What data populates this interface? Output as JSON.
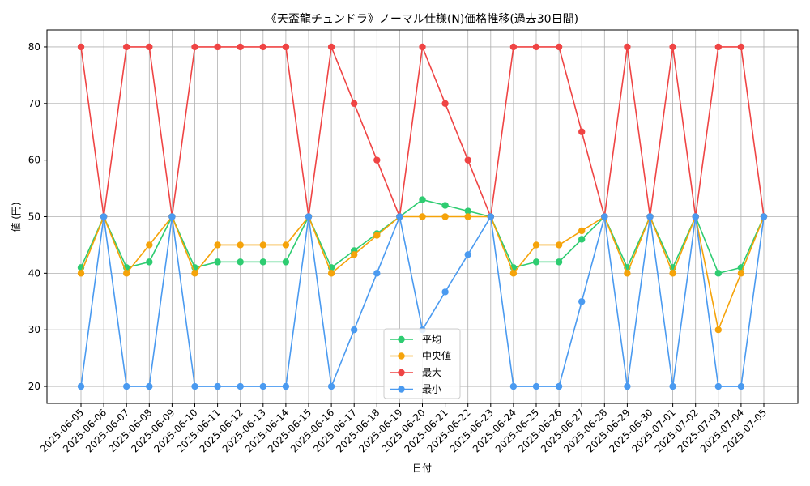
{
  "chart_data": {
    "type": "line",
    "title": "《天盃龍チュンドラ》ノーマル仕様(N)価格推移(過去30日間)",
    "xlabel": "日付",
    "ylabel": "値 (円)",
    "ylim": [
      17,
      83
    ],
    "yticks": [
      20,
      30,
      40,
      50,
      60,
      70,
      80
    ],
    "grid": true,
    "legend_position": "bottom-center",
    "categories": [
      "2025-06-05",
      "2025-06-06",
      "2025-06-07",
      "2025-06-08",
      "2025-06-09",
      "2025-06-10",
      "2025-06-11",
      "2025-06-12",
      "2025-06-13",
      "2025-06-14",
      "2025-06-15",
      "2025-06-16",
      "2025-06-17",
      "2025-06-18",
      "2025-06-19",
      "2025-06-20",
      "2025-06-21",
      "2025-06-22",
      "2025-06-23",
      "2025-06-24",
      "2025-06-25",
      "2025-06-26",
      "2025-06-27",
      "2025-06-28",
      "2025-06-29",
      "2025-06-30",
      "2025-07-01",
      "2025-07-02",
      "2025-07-03",
      "2025-07-04",
      "2025-07-05"
    ],
    "series": [
      {
        "name": "平均",
        "color": "#2ecc71",
        "values": [
          41,
          50,
          41,
          42,
          50,
          41,
          42,
          42,
          42,
          42,
          50,
          41,
          44,
          47,
          50,
          53,
          52,
          51,
          50,
          41,
          42,
          42,
          46,
          50,
          41,
          50,
          41,
          50,
          40,
          41,
          50
        ]
      },
      {
        "name": "中央値",
        "color": "#f5a30a",
        "values": [
          40,
          50,
          40,
          45,
          50,
          40,
          45,
          45,
          45,
          45,
          50,
          40,
          43.3,
          46.7,
          50,
          50,
          50,
          50,
          50,
          40,
          45,
          45,
          47.5,
          50,
          40,
          50,
          40,
          50,
          30,
          40,
          50
        ]
      },
      {
        "name": "最大",
        "color": "#ef4444",
        "values": [
          80,
          50,
          80,
          80,
          50,
          80,
          80,
          80,
          80,
          80,
          50,
          80,
          70,
          60,
          50,
          80,
          70,
          60,
          50,
          80,
          80,
          80,
          65,
          50,
          80,
          50,
          80,
          50,
          80,
          80,
          50
        ]
      },
      {
        "name": "最小",
        "color": "#4a9af0",
        "values": [
          20,
          50,
          20,
          20,
          50,
          20,
          20,
          20,
          20,
          20,
          50,
          20,
          30,
          40,
          50,
          30,
          36.7,
          43.3,
          50,
          20,
          20,
          20,
          35,
          50,
          20,
          50,
          20,
          50,
          20,
          20,
          50
        ]
      }
    ]
  }
}
